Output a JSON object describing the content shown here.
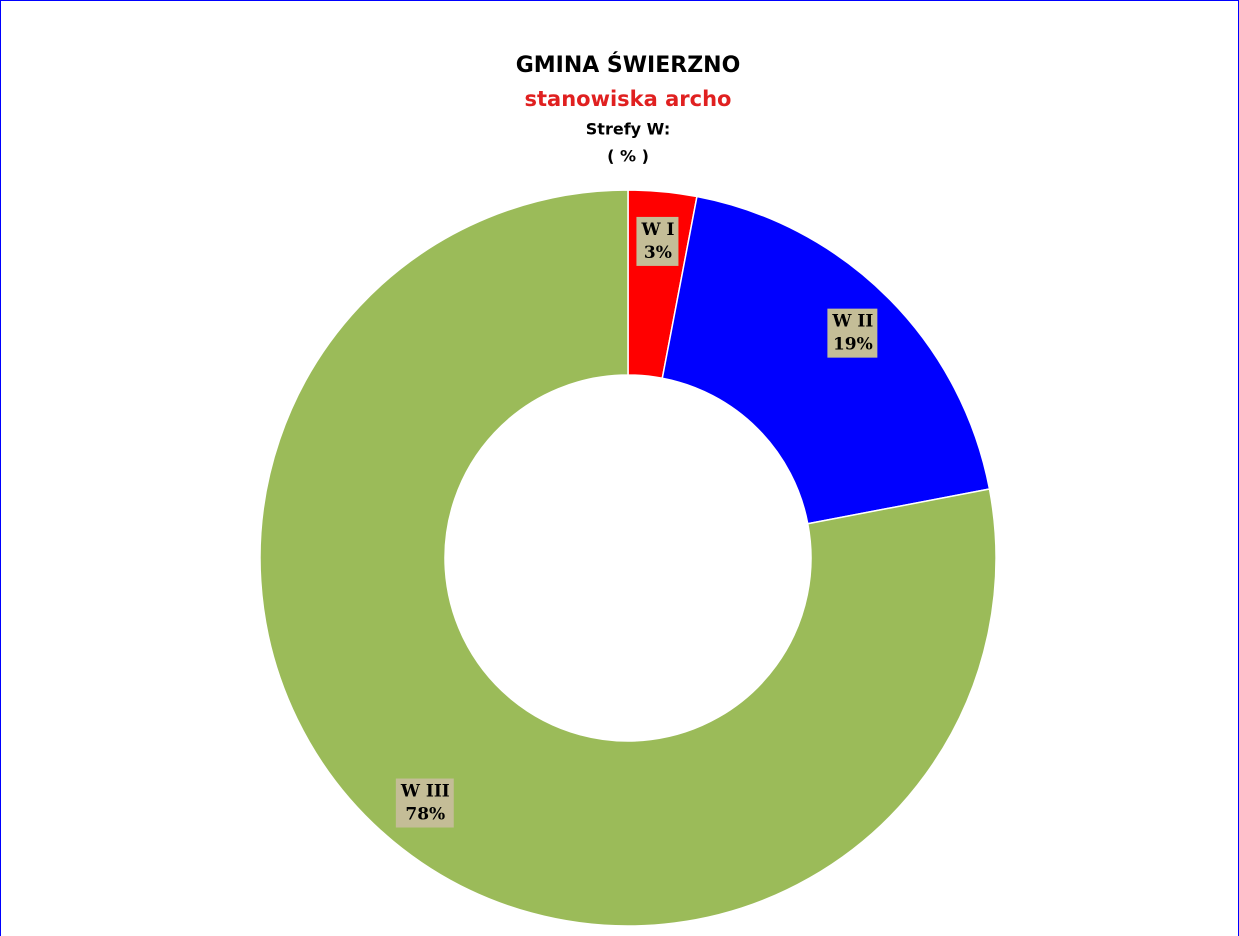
{
  "chart_data": {
    "type": "donut",
    "title": "GMINA ŚWIERZNO",
    "subtitle": "stanowiska archo",
    "annotations": [
      "Strefy W:",
      "( % )"
    ],
    "categories": [
      "W I",
      "W II",
      "W III"
    ],
    "values": [
      3,
      19,
      78
    ],
    "value_labels": [
      "3%",
      "19%",
      "78%"
    ],
    "colors": [
      "#ff0000",
      "#0000ff",
      "#9bbb59"
    ]
  }
}
